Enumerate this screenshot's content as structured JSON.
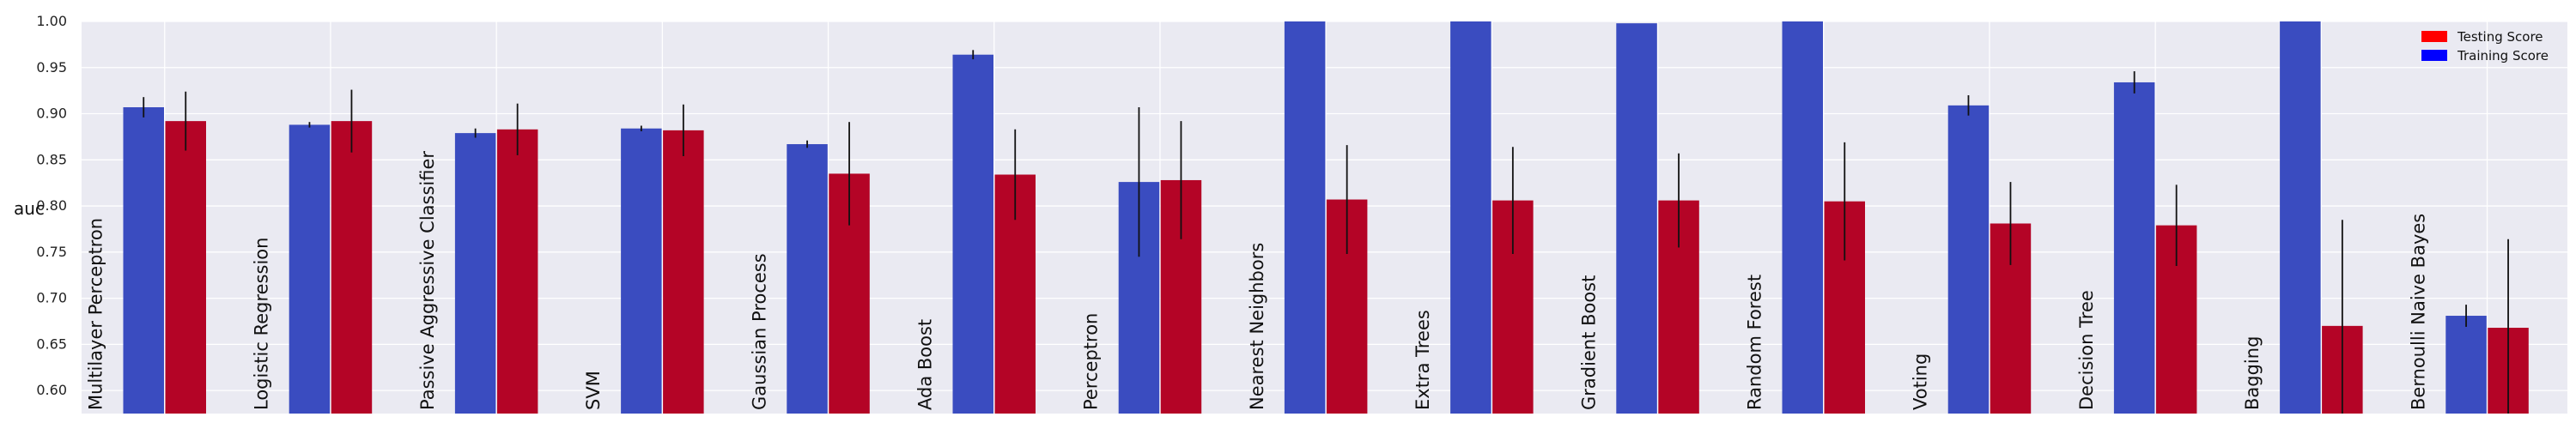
{
  "chart_data": {
    "type": "bar",
    "ylabel": "auc",
    "ylim": [
      0.575,
      1.0
    ],
    "yticks": [
      "0.60",
      "0.65",
      "0.70",
      "0.75",
      "0.80",
      "0.85",
      "0.90",
      "0.95",
      "1.00"
    ],
    "grid": true,
    "legend_position": "top-right",
    "categories": [
      "Multilayer Perceptron",
      "Logistic Regression",
      "Passive Aggressive Classifier",
      "SVM",
      "Gaussian Process",
      "Ada Boost",
      "Perceptron",
      "Nearest Neighbors",
      "Extra Trees",
      "Gradient Boost",
      "Random Forest",
      "Voting",
      "Decision Tree",
      "Bagging",
      "Bernoulli Naive Bayes"
    ],
    "series": [
      {
        "name": "Training Score",
        "color": "#3a4cc0",
        "values": [
          0.907,
          0.888,
          0.879,
          0.884,
          0.867,
          0.964,
          0.826,
          1.0,
          1.0,
          0.998,
          1.0,
          0.909,
          0.934,
          1.0,
          0.681
        ],
        "errors": [
          0.011,
          0.003,
          0.005,
          0.003,
          0.004,
          0.005,
          0.081,
          0.0,
          0.0,
          0.0,
          0.0,
          0.011,
          0.012,
          0.0,
          0.012
        ]
      },
      {
        "name": "Testing Score",
        "color": "#b40426",
        "values": [
          0.892,
          0.892,
          0.883,
          0.882,
          0.835,
          0.834,
          0.828,
          0.807,
          0.806,
          0.806,
          0.805,
          0.781,
          0.779,
          0.67,
          0.668
        ],
        "errors": [
          0.032,
          0.034,
          0.028,
          0.028,
          0.056,
          0.049,
          0.064,
          0.059,
          0.058,
          0.051,
          0.064,
          0.045,
          0.044,
          0.115,
          0.096
        ]
      }
    ],
    "legend_entries": [
      {
        "label": "Testing Score",
        "color": "#ff0000"
      },
      {
        "label": "Training Score",
        "color": "#0000ff"
      }
    ]
  }
}
